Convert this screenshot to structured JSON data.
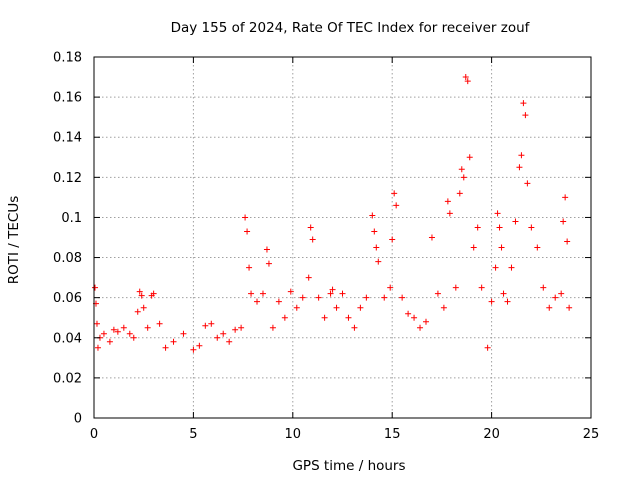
{
  "chart_data": {
    "type": "scatter",
    "title": "Day 155 of 2024, Rate Of TEC Index for receiver zouf",
    "xlabel": "GPS time / hours",
    "ylabel": "ROTI / TECUs",
    "xlim": [
      0,
      25
    ],
    "ylim": [
      0,
      0.18
    ],
    "xticks": [
      0,
      5,
      10,
      15,
      20,
      25
    ],
    "xtick_labels": [
      "0",
      "5",
      "10",
      "15",
      "20",
      "25"
    ],
    "yticks": [
      0,
      0.02,
      0.04,
      0.06,
      0.08,
      0.1,
      0.12,
      0.14,
      0.16,
      0.18
    ],
    "ytick_labels": [
      "0",
      "0.02",
      "0.04",
      "0.06",
      "0.08",
      "0.1",
      "0.12",
      "0.14",
      "0.16",
      "0.18"
    ],
    "grid": true,
    "marker": "+",
    "color": "#ff0000",
    "series": [
      {
        "name": "ROTI",
        "x": [
          0.05,
          0.1,
          0.15,
          0.2,
          0.3,
          0.5,
          0.8,
          1.0,
          1.2,
          1.5,
          1.8,
          2.0,
          2.2,
          2.3,
          2.4,
          2.5,
          2.7,
          2.9,
          3.0,
          3.3,
          3.6,
          4.0,
          4.5,
          5.0,
          5.3,
          5.6,
          5.9,
          6.2,
          6.5,
          6.8,
          7.1,
          7.4,
          7.6,
          7.7,
          7.8,
          7.9,
          8.2,
          8.5,
          8.7,
          8.8,
          9.0,
          9.3,
          9.6,
          9.9,
          10.2,
          10.5,
          10.8,
          10.9,
          11.0,
          11.3,
          11.6,
          11.9,
          12.0,
          12.2,
          12.5,
          12.8,
          13.1,
          13.4,
          13.7,
          14.0,
          14.1,
          14.2,
          14.3,
          14.6,
          14.9,
          15.0,
          15.1,
          15.2,
          15.5,
          15.8,
          16.1,
          16.4,
          16.7,
          17.0,
          17.3,
          17.6,
          17.8,
          17.9,
          18.2,
          18.4,
          18.5,
          18.6,
          18.7,
          18.8,
          18.9,
          19.1,
          19.3,
          19.5,
          19.8,
          20.0,
          20.2,
          20.3,
          20.4,
          20.5,
          20.6,
          20.8,
          21.0,
          21.2,
          21.4,
          21.5,
          21.6,
          21.7,
          21.8,
          22.0,
          22.3,
          22.6,
          22.9,
          23.2,
          23.5,
          23.6,
          23.7,
          23.8,
          23.9
        ],
        "y": [
          0.065,
          0.057,
          0.047,
          0.035,
          0.04,
          0.042,
          0.038,
          0.044,
          0.043,
          0.045,
          0.042,
          0.04,
          0.053,
          0.063,
          0.061,
          0.055,
          0.045,
          0.061,
          0.062,
          0.047,
          0.035,
          0.038,
          0.042,
          0.034,
          0.036,
          0.046,
          0.047,
          0.04,
          0.042,
          0.038,
          0.044,
          0.045,
          0.1,
          0.093,
          0.075,
          0.062,
          0.058,
          0.062,
          0.084,
          0.077,
          0.045,
          0.058,
          0.05,
          0.063,
          0.055,
          0.06,
          0.07,
          0.095,
          0.089,
          0.06,
          0.05,
          0.062,
          0.064,
          0.055,
          0.062,
          0.05,
          0.045,
          0.055,
          0.06,
          0.101,
          0.093,
          0.085,
          0.078,
          0.06,
          0.065,
          0.089,
          0.112,
          0.106,
          0.06,
          0.052,
          0.05,
          0.045,
          0.048,
          0.09,
          0.062,
          0.055,
          0.108,
          0.102,
          0.065,
          0.112,
          0.124,
          0.12,
          0.17,
          0.168,
          0.13,
          0.085,
          0.095,
          0.065,
          0.035,
          0.058,
          0.075,
          0.102,
          0.095,
          0.085,
          0.062,
          0.058,
          0.075,
          0.098,
          0.125,
          0.131,
          0.157,
          0.151,
          0.117,
          0.095,
          0.085,
          0.065,
          0.055,
          0.06,
          0.062,
          0.098,
          0.11,
          0.088,
          0.055
        ]
      }
    ]
  }
}
